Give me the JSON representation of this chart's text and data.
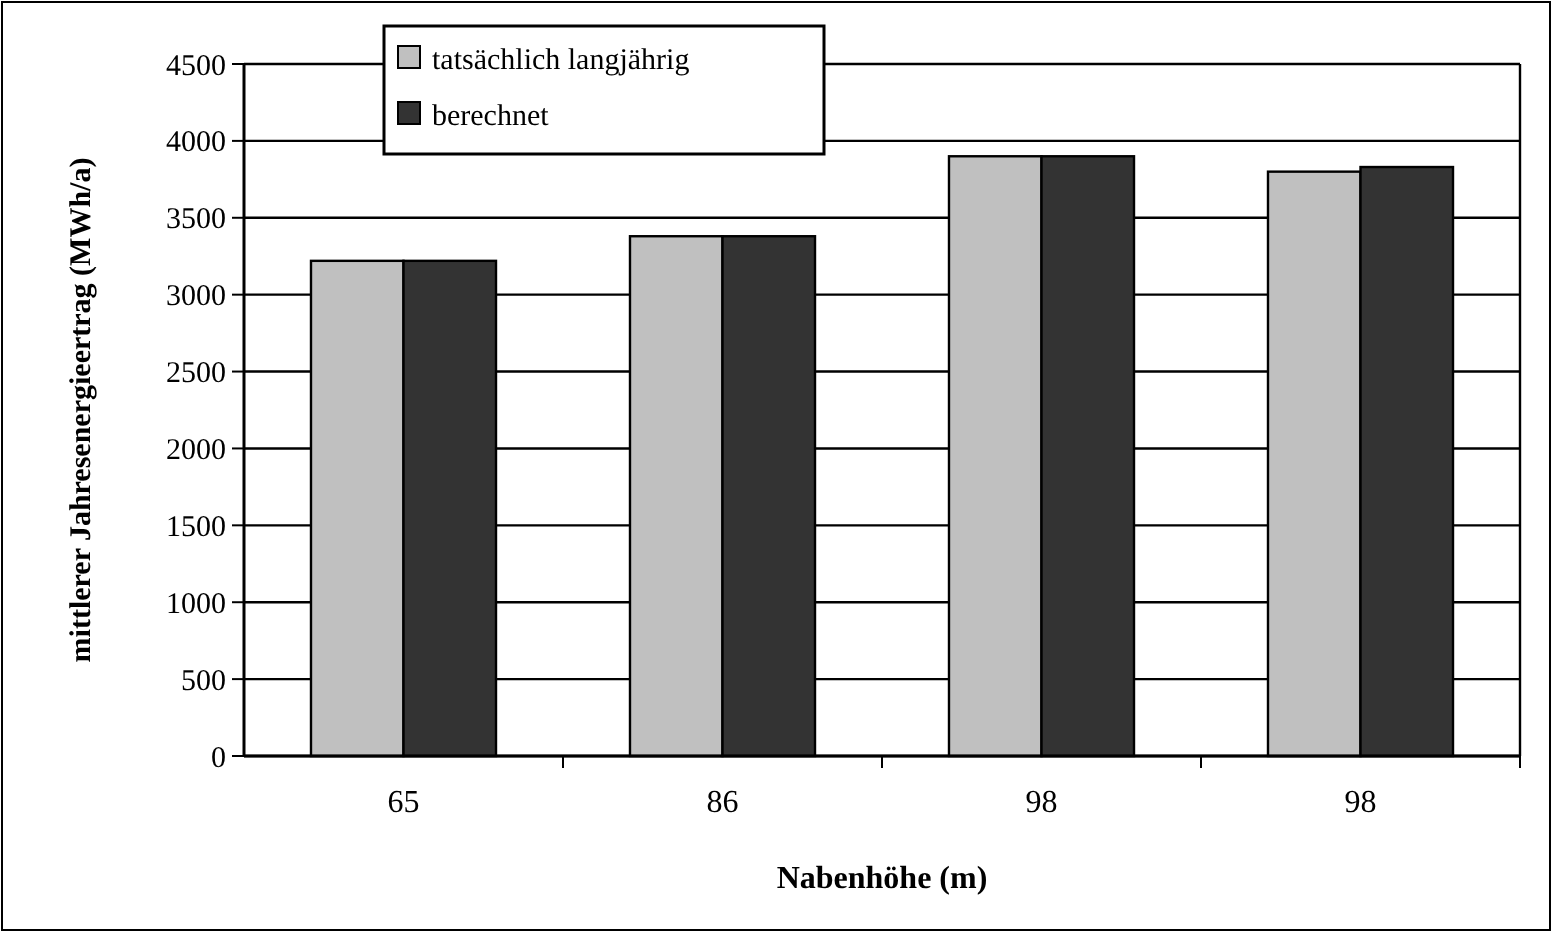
{
  "chart_data": {
    "type": "bar",
    "xlabel": "Nabenhöhe (m)",
    "ylabel": "mittlerer Jahresenergieertrag (MWh/a)",
    "categories": [
      "65",
      "86",
      "98",
      "98"
    ],
    "series": [
      {
        "name": "tatsächlich langjährig",
        "color": "#c0c0c0",
        "values": [
          3220,
          3380,
          3900,
          3800
        ]
      },
      {
        "name": "berechnet",
        "color": "#333333",
        "values": [
          3220,
          3380,
          3900,
          3830
        ]
      }
    ],
    "ylim": [
      0,
      4500
    ],
    "yticks": [
      0,
      500,
      1000,
      1500,
      2000,
      2500,
      3000,
      3500,
      4000,
      4500
    ],
    "grid": "y",
    "legend": "top left"
  }
}
